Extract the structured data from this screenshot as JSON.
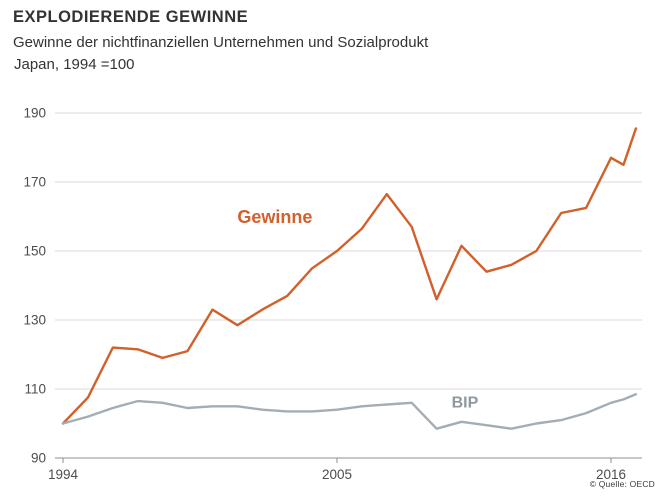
{
  "header": {
    "title": "EXPLODIERENDE GEWINNE",
    "subtitle": "Gewinne der nichtfinanziellen Unternehmen und Sozialprodukt",
    "subtitle2": "Japan, 1994 =100"
  },
  "source": "© Quelle: OECD",
  "colors": {
    "gewinne": "#d2602b",
    "bip": "#a4adb4",
    "bip_label": "#8e989f",
    "grid": "#d8d8d8",
    "axis": "#8f8f8f",
    "tick_label": "#4d4d4d"
  },
  "chart_data": {
    "type": "line",
    "title": "EXPLODIERENDE GEWINNE",
    "subtitle": "Gewinne der nichtfinanziellen Unternehmen und Sozialprodukt, Japan, 1994 = 100",
    "x": [
      1994,
      1995,
      1996,
      1997,
      1998,
      1999,
      2000,
      2001,
      2002,
      2003,
      2004,
      2005,
      2006,
      2007,
      2008,
      2009,
      2010,
      2011,
      2012,
      2013,
      2014,
      2015,
      2016,
      2016.5,
      2017
    ],
    "series": [
      {
        "name": "Gewinne",
        "color": "#d2602b",
        "values": [
          100,
          107.5,
          122,
          121.5,
          119,
          121,
          133,
          128.5,
          133,
          137,
          145,
          150,
          156.5,
          166.5,
          157,
          136,
          151.5,
          144,
          146,
          150,
          161,
          162.5,
          177,
          175,
          185.5
        ]
      },
      {
        "name": "BIP",
        "color": "#a4adb4",
        "values": [
          100,
          102,
          104.5,
          106.5,
          106,
          104.5,
          105,
          105,
          104,
          103.5,
          103.5,
          104,
          105,
          105.5,
          106,
          98.5,
          100.5,
          99.5,
          98.5,
          100,
          101,
          103,
          106,
          107,
          108.5
        ]
      }
    ],
    "ylim": [
      90,
      190
    ],
    "yticks": [
      90,
      110,
      130,
      150,
      170,
      190
    ],
    "xticks": [
      1994,
      2005,
      2016
    ],
    "xlabel": "",
    "ylabel": "",
    "grid": true,
    "legend_position": "inline-annotations",
    "annotations": [
      {
        "text": "Gewinne",
        "x": 2001.0,
        "y": 159.5,
        "color": "#d2602b",
        "anchor": "start",
        "size": 18
      },
      {
        "text": "BIP",
        "x": 2009.6,
        "y": 105.8,
        "color": "#8e989f",
        "anchor": "start",
        "size": 16
      }
    ]
  }
}
